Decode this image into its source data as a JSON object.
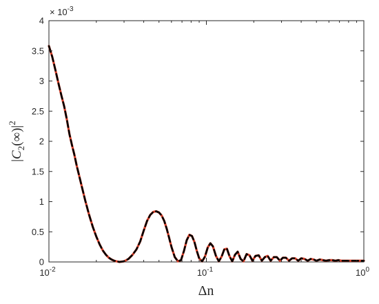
{
  "chart_data": {
    "type": "line",
    "title": "",
    "xlabel": "Δn",
    "ylabel": "|C2(∞)|2",
    "ylabel_parts": {
      "open": "|",
      "symbol": "C",
      "sub": "2",
      "arg": "(∞)",
      "close": "|",
      "sup": "2"
    },
    "x_scale": "log",
    "xlim": [
      0.01,
      1
    ],
    "ylim": [
      0,
      0.004
    ],
    "y_multiplier_label": "× 10",
    "y_multiplier_exp": "-3",
    "grid": false,
    "legend": "none",
    "x_ticks": [
      {
        "value": 0.01,
        "base": "10",
        "exp": "-2"
      },
      {
        "value": 0.1,
        "base": "10",
        "exp": "-1"
      },
      {
        "value": 1,
        "base": "10",
        "exp": "0"
      }
    ],
    "y_ticks": [
      {
        "value": 0,
        "label": "0"
      },
      {
        "value": 0.0005,
        "label": "0.5"
      },
      {
        "value": 0.001,
        "label": "1"
      },
      {
        "value": 0.0015,
        "label": "1.5"
      },
      {
        "value": 0.002,
        "label": "2"
      },
      {
        "value": 0.0025,
        "label": "2.5"
      },
      {
        "value": 0.003,
        "label": "3"
      },
      {
        "value": 0.0035,
        "label": "3.5"
      },
      {
        "value": 0.004,
        "label": "4"
      }
    ],
    "series": [
      {
        "style": "solid",
        "color": "#d9412b",
        "x": [
          0.01,
          0.0105,
          0.011,
          0.0115,
          0.012,
          0.0125,
          0.013,
          0.0135,
          0.014,
          0.0145,
          0.015,
          0.016,
          0.017,
          0.018,
          0.019,
          0.02,
          0.021,
          0.022,
          0.023,
          0.024,
          0.025,
          0.026,
          0.027,
          0.028,
          0.03,
          0.032,
          0.034,
          0.036,
          0.038,
          0.04,
          0.042,
          0.044,
          0.046,
          0.048,
          0.05,
          0.052,
          0.054,
          0.056,
          0.058,
          0.06,
          0.063,
          0.066,
          0.069,
          0.072,
          0.075,
          0.078,
          0.081,
          0.084,
          0.087,
          0.09,
          0.094,
          0.098,
          0.102,
          0.106,
          0.11,
          0.115,
          0.12,
          0.125,
          0.13,
          0.135,
          0.14,
          0.146,
          0.152,
          0.158,
          0.165,
          0.172,
          0.18,
          0.188,
          0.196,
          0.205,
          0.215,
          0.225,
          0.235,
          0.245,
          0.256,
          0.268,
          0.28,
          0.293,
          0.306,
          0.32,
          0.335,
          0.35,
          0.366,
          0.383,
          0.4,
          0.42,
          0.44,
          0.46,
          0.48,
          0.5,
          0.525,
          0.55,
          0.575,
          0.6,
          0.63,
          0.66,
          0.69,
          0.72,
          0.75,
          0.79,
          0.83,
          0.87,
          0.91,
          0.95,
          1.0
        ],
        "y": [
          0.00358,
          0.0034,
          0.00318,
          0.00296,
          0.00276,
          0.00258,
          0.00236,
          0.00212,
          0.00194,
          0.00178,
          0.0016,
          0.0013,
          0.00102,
          0.00078,
          0.00058,
          0.00042,
          0.00029,
          0.00019,
          0.00012,
          7e-05,
          4e-05,
          2e-05,
          1e-05,
          0.0,
          1e-05,
          5e-05,
          0.00012,
          0.00021,
          0.00034,
          0.00052,
          0.00068,
          0.00078,
          0.00083,
          0.00084,
          0.00082,
          0.00077,
          0.00068,
          0.00055,
          0.0004,
          0.00025,
          8e-05,
          1e-05,
          3e-05,
          0.00018,
          0.00036,
          0.00045,
          0.00043,
          0.00033,
          0.00018,
          6e-05,
          1e-05,
          9e-05,
          0.00024,
          0.00031,
          0.00026,
          0.0001,
          1e-05,
          9e-05,
          0.00021,
          0.00022,
          0.0001,
          1e-05,
          0.00012,
          0.00017,
          5e-05,
          1e-05,
          0.00013,
          0.00011,
          2e-05,
          0.0001,
          0.00011,
          2e-05,
          8e-05,
          0.0001,
          2e-05,
          8e-05,
          8e-05,
          2e-05,
          7e-05,
          7e-05,
          2e-05,
          6e-05,
          6e-05,
          2e-05,
          6e-05,
          5e-05,
          2e-05,
          5e-05,
          4e-05,
          2e-05,
          4e-05,
          3e-05,
          2e-05,
          3e-05,
          3e-05,
          2e-05,
          3e-05,
          2e-05,
          2e-05,
          2e-05,
          2e-05,
          2e-05,
          2e-05,
          2e-05,
          2e-05
        ]
      },
      {
        "style": "dashed",
        "color": "#000000",
        "x": [
          0.01,
          0.0105,
          0.011,
          0.0115,
          0.012,
          0.0125,
          0.013,
          0.0135,
          0.014,
          0.0145,
          0.015,
          0.016,
          0.017,
          0.018,
          0.019,
          0.02,
          0.021,
          0.022,
          0.023,
          0.024,
          0.025,
          0.026,
          0.027,
          0.028,
          0.03,
          0.032,
          0.034,
          0.036,
          0.038,
          0.04,
          0.042,
          0.044,
          0.046,
          0.048,
          0.05,
          0.052,
          0.054,
          0.056,
          0.058,
          0.06,
          0.063,
          0.066,
          0.069,
          0.072,
          0.075,
          0.078,
          0.081,
          0.084,
          0.087,
          0.09,
          0.094,
          0.098,
          0.102,
          0.106,
          0.11,
          0.115,
          0.12,
          0.125,
          0.13,
          0.135,
          0.14,
          0.146,
          0.152,
          0.158,
          0.165,
          0.172,
          0.18,
          0.188,
          0.196,
          0.205,
          0.215,
          0.225,
          0.235,
          0.245,
          0.256,
          0.268,
          0.28,
          0.293,
          0.306,
          0.32,
          0.335,
          0.35,
          0.366,
          0.383,
          0.4,
          0.42,
          0.44,
          0.46,
          0.48,
          0.5,
          0.525,
          0.55,
          0.575,
          0.6,
          0.63,
          0.66,
          0.69,
          0.72,
          0.75,
          0.79,
          0.83,
          0.87,
          0.91,
          0.95,
          1.0
        ],
        "y": [
          0.00358,
          0.0034,
          0.00318,
          0.00296,
          0.00276,
          0.00258,
          0.00236,
          0.00212,
          0.00194,
          0.00178,
          0.0016,
          0.0013,
          0.00102,
          0.00078,
          0.00058,
          0.00042,
          0.00029,
          0.00019,
          0.00012,
          7e-05,
          4e-05,
          2e-05,
          1e-05,
          0.0,
          1e-05,
          5e-05,
          0.00012,
          0.00021,
          0.00034,
          0.00052,
          0.00068,
          0.00078,
          0.00083,
          0.00084,
          0.00082,
          0.00077,
          0.00068,
          0.00055,
          0.0004,
          0.00025,
          8e-05,
          1e-05,
          3e-05,
          0.00018,
          0.00036,
          0.00045,
          0.00043,
          0.00033,
          0.00018,
          6e-05,
          1e-05,
          9e-05,
          0.00024,
          0.00031,
          0.00026,
          0.0001,
          1e-05,
          9e-05,
          0.00021,
          0.00022,
          0.0001,
          1e-05,
          0.00012,
          0.00017,
          5e-05,
          1e-05,
          0.00013,
          0.00011,
          2e-05,
          0.0001,
          0.00011,
          2e-05,
          8e-05,
          0.0001,
          2e-05,
          8e-05,
          8e-05,
          2e-05,
          7e-05,
          7e-05,
          2e-05,
          6e-05,
          6e-05,
          2e-05,
          6e-05,
          5e-05,
          2e-05,
          5e-05,
          4e-05,
          2e-05,
          4e-05,
          3e-05,
          2e-05,
          3e-05,
          3e-05,
          2e-05,
          3e-05,
          2e-05,
          2e-05,
          2e-05,
          2e-05,
          2e-05,
          2e-05,
          2e-05,
          2e-05
        ]
      }
    ]
  }
}
